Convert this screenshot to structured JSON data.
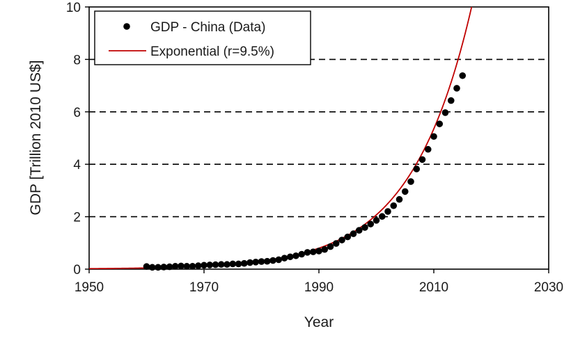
{
  "chart_data": {
    "type": "scatter",
    "title": "",
    "xlabel": "Year",
    "ylabel": "GDP [Trillion 2010 US$]",
    "xlim": [
      1950,
      2030
    ],
    "ylim": [
      0,
      10
    ],
    "xticks": [
      1950,
      1970,
      1990,
      2010,
      2030
    ],
    "yticks": [
      0,
      2,
      4,
      6,
      8,
      10
    ],
    "grid": "dashed horizontal lines at y = 2, 4, 6, 8",
    "legend_position": "top-left",
    "series": [
      {
        "name": "GDP - China (Data)",
        "kind": "scatter",
        "marker": "filled-circle",
        "color": "#000000",
        "x": [
          1960,
          1961,
          1962,
          1963,
          1964,
          1965,
          1966,
          1967,
          1968,
          1969,
          1970,
          1971,
          1972,
          1973,
          1974,
          1975,
          1976,
          1977,
          1978,
          1979,
          1980,
          1981,
          1982,
          1983,
          1984,
          1985,
          1986,
          1987,
          1988,
          1989,
          1990,
          1991,
          1992,
          1993,
          1994,
          1995,
          1996,
          1997,
          1998,
          1999,
          2000,
          2001,
          2002,
          2003,
          2004,
          2005,
          2006,
          2007,
          2008,
          2009,
          2010,
          2011,
          2012,
          2013,
          2014,
          2015
        ],
        "y": [
          0.1,
          0.07,
          0.07,
          0.08,
          0.09,
          0.11,
          0.12,
          0.11,
          0.11,
          0.13,
          0.15,
          0.16,
          0.17,
          0.18,
          0.18,
          0.2,
          0.2,
          0.22,
          0.25,
          0.27,
          0.29,
          0.3,
          0.33,
          0.36,
          0.42,
          0.47,
          0.51,
          0.57,
          0.64,
          0.66,
          0.69,
          0.75,
          0.86,
          0.98,
          1.11,
          1.23,
          1.35,
          1.48,
          1.59,
          1.72,
          1.86,
          2.01,
          2.2,
          2.42,
          2.66,
          2.96,
          3.34,
          3.82,
          4.18,
          4.57,
          5.06,
          5.54,
          5.97,
          6.43,
          6.9,
          7.38
        ]
      },
      {
        "name": "Exponential (r=9.5%)",
        "kind": "line",
        "color": "#c00000",
        "rate": 0.095,
        "x": [
          1950,
          1955,
          1960,
          1965,
          1970,
          1975,
          1980,
          1985,
          1990,
          1995,
          2000,
          2005,
          2008,
          2010,
          2012,
          2014,
          2016
        ],
        "y": [
          0.02,
          0.03,
          0.05,
          0.08,
          0.12,
          0.19,
          0.31,
          0.5,
          0.8,
          1.29,
          2.07,
          3.33,
          4.42,
          5.32,
          6.42,
          7.75,
          10.0
        ]
      }
    ]
  }
}
